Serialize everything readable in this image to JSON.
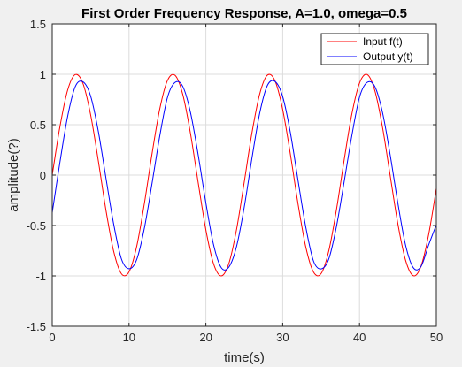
{
  "chart_data": {
    "type": "line",
    "title": "First Order Frequency Response, A=1.0, omega=0.5",
    "xlabel": "time(s)",
    "ylabel": "amplitude(?)",
    "xlim": [
      0,
      50
    ],
    "ylim": [
      -1.5,
      1.5
    ],
    "xticks": [
      0,
      10,
      20,
      30,
      40,
      50
    ],
    "yticks": [
      1.5,
      1,
      0.5,
      0,
      -0.5,
      -1,
      -1.5
    ],
    "xtick_labels": [
      "0",
      "10",
      "20",
      "30",
      "40",
      "50"
    ],
    "ytick_labels": [
      "1.5",
      "1",
      "0.5",
      "0",
      "-0.5",
      "-1",
      "-1.5"
    ],
    "grid": true,
    "legend_position": "top-right",
    "x": [
      0,
      1,
      2,
      3,
      4,
      5,
      6,
      7,
      8,
      9,
      10,
      11,
      12,
      13,
      14,
      15,
      16,
      17,
      18,
      19,
      20,
      21,
      22,
      23,
      24,
      25,
      26,
      27,
      28,
      29,
      30,
      31,
      32,
      33,
      34,
      35,
      36,
      37,
      38,
      39,
      40,
      41,
      42,
      43,
      44,
      45,
      46,
      47,
      48,
      49,
      50
    ],
    "series": [
      {
        "name": "Input f(t)",
        "color": "#ff0000",
        "values": [
          0,
          0.479,
          0.841,
          0.997,
          0.909,
          0.598,
          0.141,
          -0.351,
          -0.757,
          -0.978,
          -0.959,
          -0.706,
          -0.279,
          0.215,
          0.657,
          0.938,
          0.989,
          0.798,
          0.412,
          -0.075,
          -0.544,
          -0.88,
          -1.0,
          -0.875,
          -0.537,
          -0.066,
          0.42,
          0.803,
          0.991,
          0.935,
          0.65,
          0.207,
          -0.288,
          -0.712,
          -0.961,
          -0.977,
          -0.751,
          -0.342,
          0.15,
          0.605,
          0.913,
          0.997,
          0.837,
          0.471,
          -0.009,
          -0.487,
          -0.846,
          -0.998,
          -0.905,
          -0.59,
          -0.132
        ]
      },
      {
        "name": "Output y(t)",
        "color": "#0000ff",
        "values": [
          -0.373,
          0.126,
          0.58,
          0.878,
          0.926,
          0.784,
          0.434,
          -0.032,
          -0.487,
          -0.83,
          -0.929,
          -0.837,
          -0.524,
          -0.079,
          0.388,
          0.77,
          0.92,
          0.879,
          0.621,
          0.2,
          -0.276,
          -0.691,
          -0.918,
          -0.912,
          -0.706,
          -0.315,
          0.169,
          0.612,
          0.888,
          0.929,
          0.778,
          0.421,
          -0.055,
          -0.514,
          -0.851,
          -0.931,
          -0.832,
          -0.509,
          -0.066,
          0.391,
          0.773,
          0.92,
          0.878,
          0.619,
          0.197,
          -0.281,
          -0.696,
          -0.918,
          -0.908,
          -0.693,
          -0.493
        ]
      }
    ]
  }
}
